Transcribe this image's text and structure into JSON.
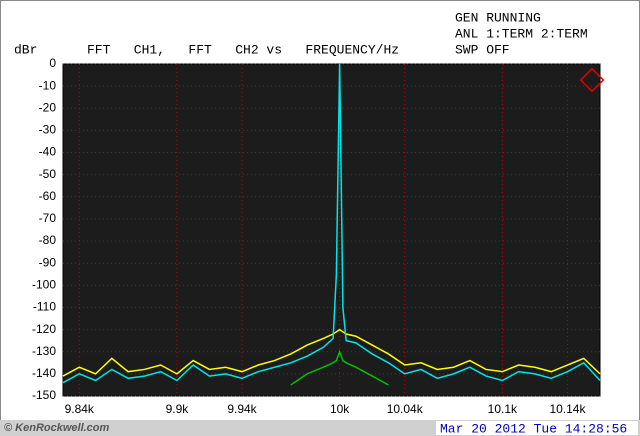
{
  "chart_data": {
    "type": "line",
    "status": [
      "GEN RUNNING",
      "ANL 1:TERM 2:TERM",
      "SWP OFF"
    ],
    "y_label": "dBr",
    "title": "FFT   CH1,   FFT   CH2 vs   FREQUENCY/Hz",
    "timestamp": "Mar 20 2012 Tue 14:28:56",
    "watermark": "© KenRockwell.com",
    "x": [
      9830,
      9840,
      9850,
      9860,
      9870,
      9880,
      9890,
      9900,
      9910,
      9920,
      9930,
      9940,
      9950,
      9960,
      9970,
      9980,
      9990,
      9996,
      9998,
      10000,
      10002,
      10004,
      10010,
      10020,
      10030,
      10040,
      10050,
      10060,
      10070,
      10080,
      10090,
      10100,
      10110,
      10120,
      10130,
      10140,
      10150,
      10160
    ],
    "series": [
      {
        "color": "#ffff00",
        "values": [
          -141,
          -137,
          -140,
          -133,
          -139,
          -138,
          -136,
          -140,
          -134,
          -138,
          -137,
          -139,
          -136,
          -134,
          -131,
          -127,
          -124,
          -122,
          -121,
          -120,
          -121,
          -122,
          -123,
          -127,
          -131,
          -136,
          -135,
          -138,
          -137,
          -134,
          -138,
          -139,
          -136,
          -137,
          -139,
          -136,
          -133,
          -140
        ]
      },
      {
        "color": "#00e5e5",
        "values": [
          -144,
          -140,
          -143,
          -138,
          -142,
          -141,
          -139,
          -143,
          -136,
          -141,
          -140,
          -142,
          -139,
          -137,
          -135,
          -132,
          -128,
          -124,
          -95,
          0,
          -110,
          -125,
          -126,
          -131,
          -135,
          -140,
          -138,
          -142,
          -140,
          -137,
          -141,
          -143,
          -139,
          -140,
          -142,
          -139,
          -135,
          -143
        ]
      },
      {
        "color": "#00c000",
        "values": [
          null,
          null,
          null,
          null,
          null,
          null,
          null,
          null,
          null,
          null,
          null,
          null,
          null,
          null,
          -145,
          -140,
          -137,
          -135,
          -134,
          -130,
          -134,
          -135,
          -137,
          -141,
          -145,
          null,
          null,
          null,
          null,
          null,
          null,
          null,
          null,
          null,
          null,
          null,
          null,
          null
        ]
      }
    ],
    "xlim": [
      9830,
      10160
    ],
    "xticks": [
      {
        "value": 9840,
        "label": "9.84k"
      },
      {
        "value": 9900,
        "label": "9.9k"
      },
      {
        "value": 9940,
        "label": "9.94k"
      },
      {
        "value": 10000,
        "label": "10k"
      },
      {
        "value": 10040,
        "label": "10.04k"
      },
      {
        "value": 10100,
        "label": "10.1k"
      },
      {
        "value": 10140,
        "label": "10.14k"
      }
    ],
    "ylim": [
      -150,
      0
    ],
    "yticks": [
      0,
      -10,
      -20,
      -30,
      -40,
      -50,
      -60,
      -70,
      -80,
      -90,
      -100,
      -110,
      -120,
      -130,
      -140,
      -150
    ],
    "grid": true,
    "grid_color": "#c00000",
    "background": "#1c1c1c"
  }
}
